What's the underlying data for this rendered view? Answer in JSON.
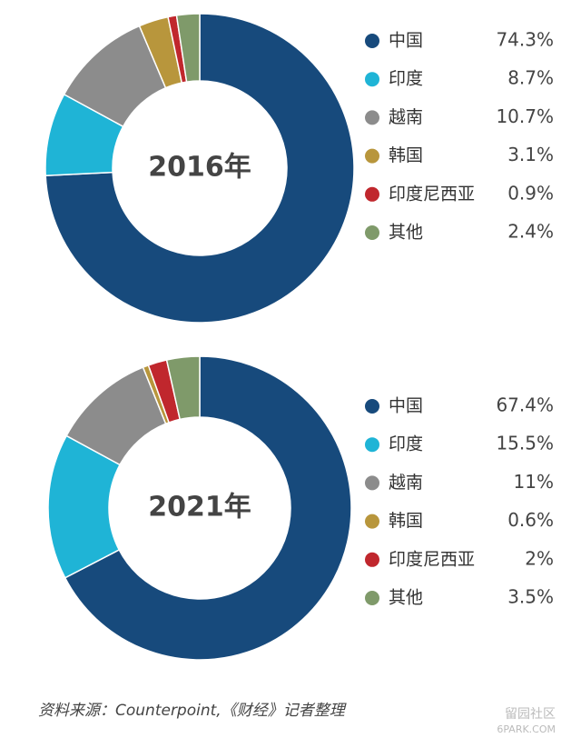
{
  "chart_data": [
    {
      "type": "donut",
      "title": "2016年",
      "categories": [
        "中国",
        "印度",
        "越南",
        "韩国",
        "印度尼西亚",
        "其他"
      ],
      "values": [
        74.3,
        8.7,
        10.7,
        3.1,
        0.9,
        2.4
      ],
      "value_labels": [
        "74.3%",
        "8.7%",
        "10.7%",
        "3.1%",
        "0.9%",
        "2.4%"
      ],
      "colors": [
        "#174a7c",
        "#1fb4d6",
        "#8c8c8c",
        "#b8963c",
        "#c0272d",
        "#7f9a6a"
      ]
    },
    {
      "type": "donut",
      "title": "2021年",
      "categories": [
        "中国",
        "印度",
        "越南",
        "韩国",
        "印度尼西亚",
        "其他"
      ],
      "values": [
        67.4,
        15.5,
        11,
        0.6,
        2,
        3.5
      ],
      "value_labels": [
        "67.4%",
        "15.5%",
        "11%",
        "0.6%",
        "2%",
        "3.5%"
      ],
      "colors": [
        "#174a7c",
        "#1fb4d6",
        "#8c8c8c",
        "#b8963c",
        "#c0272d",
        "#7f9a6a"
      ]
    }
  ],
  "source": "资料来源：Counterpoint,《财经》记者整理",
  "watermark": {
    "name": "留园社区",
    "site": "6PARK.COM"
  }
}
